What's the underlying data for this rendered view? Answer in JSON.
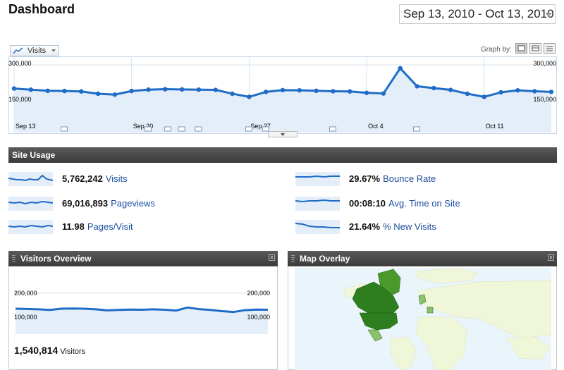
{
  "page": {
    "title": "Dashboard"
  },
  "date_range": {
    "label": "Sep 13, 2010 - Oct 13, 2010"
  },
  "main_graph": {
    "metric_label": "Visits",
    "graph_by_label": "Graph by:",
    "graph_by_options": [
      "day-icon",
      "week-icon",
      "month-icon"
    ],
    "y_top_label": "300,000",
    "y_mid_label": "150,000",
    "x_labels": [
      "Sep 13",
      "Sep 20",
      "Sep 27",
      "Oct 4",
      "Oct 11"
    ],
    "line_color": "#1f6cc6",
    "fill_color": "#e3eef9"
  },
  "site_usage": {
    "title": "Site Usage",
    "metrics": [
      {
        "value": "5,762,242",
        "label": "Visits"
      },
      {
        "value": "69,016,893",
        "label": "Pageviews"
      },
      {
        "value": "11.98",
        "label": "Pages/Visit"
      },
      {
        "value": "29.67%",
        "label": "Bounce Rate"
      },
      {
        "value": "00:08:10",
        "label": "Avg. Time on Site"
      },
      {
        "value": "21.64%",
        "label": "% New Visits"
      }
    ]
  },
  "visitors_overview": {
    "title": "Visitors Overview",
    "y_top_label": "200,000",
    "y_mid_label": "100,000",
    "total_value": "1,540,814",
    "total_label": "Visitors"
  },
  "map_overlay": {
    "title": "Map Overlay",
    "water_color": "#eaf4fb",
    "land_color": "#f0f6d8",
    "highlight_colors": [
      "#2e7d1e",
      "#4a9a2b",
      "#8cc36a"
    ]
  },
  "chart_data": [
    {
      "type": "line",
      "title": "",
      "series": [
        {
          "values": [
            195000,
            190000,
            185000,
            184000,
            182000,
            172000,
            168000,
            184000,
            190000,
            192000,
            191000,
            190000,
            189000,
            172000,
            158000,
            180000,
            188000,
            187000,
            185000,
            183000,
            182000,
            176000,
            173000,
            285000,
            205000,
            197000,
            189000,
            172000,
            158000,
            178000,
            187000,
            183000,
            180000
          ]
        }
      ],
      "x_start": "Sep 13, 2010",
      "x_end": "Oct 13, 2010",
      "x_ticks": [
        "Sep 13",
        "Sep 20",
        "Sep 27",
        "Oct 4",
        "Oct 11"
      ],
      "ylim": [
        0,
        300000
      ],
      "grid": true,
      "legend": "none"
    },
    {
      "type": "line",
      "title": "",
      "series": [
        {
          "values": [
            124000,
            123000,
            121000,
            118000,
            124000,
            125000,
            124000,
            121000,
            116000,
            118000,
            120000,
            119000,
            121000,
            119000,
            115000,
            130000,
            122000,
            118000,
            112000,
            108000,
            117000,
            120000,
            119000
          ]
        }
      ],
      "ylim": [
        0,
        200000
      ],
      "grid": true,
      "legend": "none"
    }
  ]
}
